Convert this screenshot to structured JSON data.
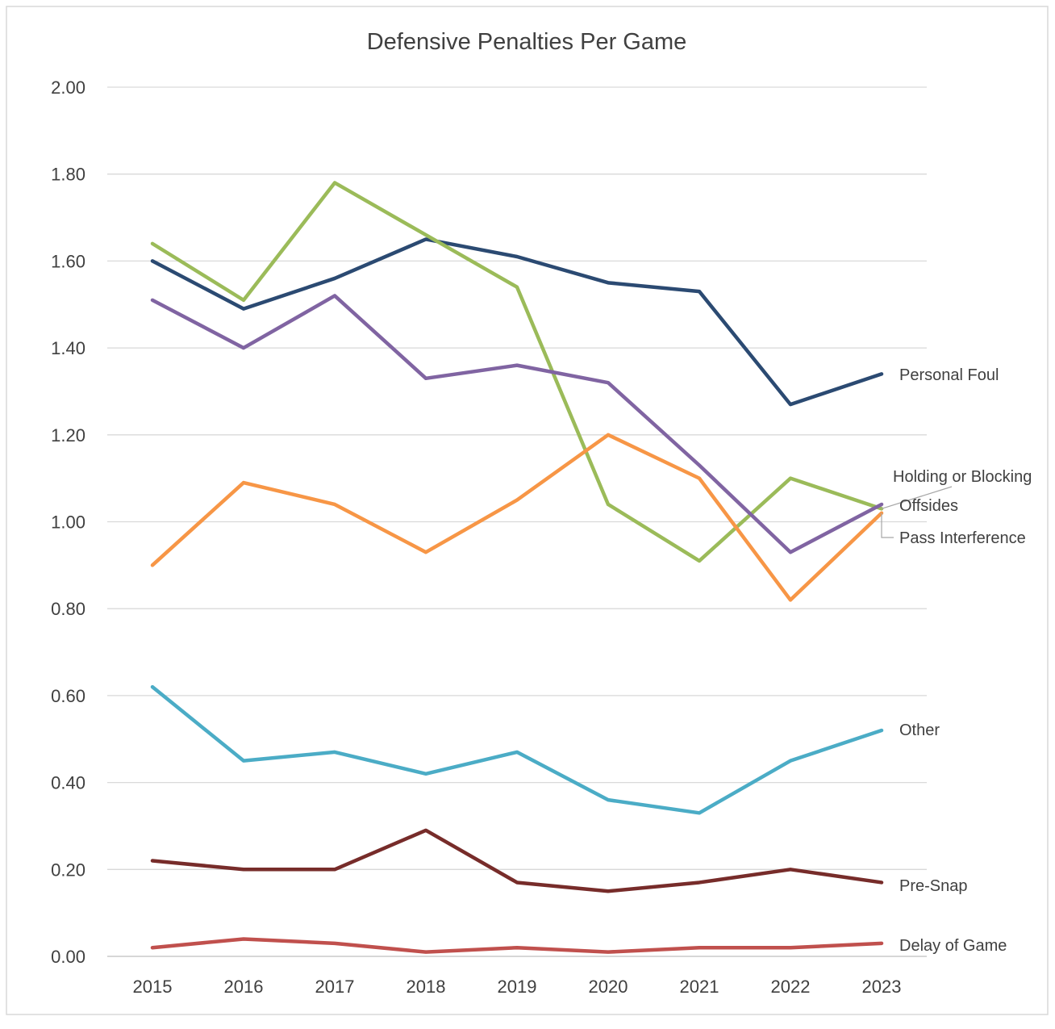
{
  "chart_data": {
    "type": "line",
    "title": "Defensive Penalties Per Game",
    "xlabel": "",
    "ylabel": "",
    "categories": [
      "2015",
      "2016",
      "2017",
      "2018",
      "2019",
      "2020",
      "2021",
      "2022",
      "2023"
    ],
    "ylim": [
      0,
      2.0
    ],
    "yticks": [
      "0.00",
      "0.20",
      "0.40",
      "0.60",
      "0.80",
      "1.00",
      "1.20",
      "1.40",
      "1.60",
      "1.80",
      "2.00"
    ],
    "grid": true,
    "legend": "inline labels at line ends (right)",
    "series": [
      {
        "name": "Personal Foul",
        "color": "#2B4A72",
        "values": [
          1.6,
          1.49,
          1.56,
          1.65,
          1.61,
          1.55,
          1.53,
          1.27,
          1.34
        ]
      },
      {
        "name": "Holding or Blocking",
        "color": "#9BBB59",
        "values": [
          1.64,
          1.51,
          1.78,
          1.66,
          1.54,
          1.04,
          0.91,
          1.1,
          1.03
        ]
      },
      {
        "name": "Offsides",
        "color": "#8064A2",
        "values": [
          1.51,
          1.4,
          1.52,
          1.33,
          1.36,
          1.32,
          1.13,
          0.93,
          1.04
        ]
      },
      {
        "name": "Pass Interference",
        "color": "#F79646",
        "values": [
          0.9,
          1.09,
          1.04,
          0.93,
          1.05,
          1.2,
          1.1,
          0.82,
          1.02
        ]
      },
      {
        "name": "Other",
        "color": "#4BACC6",
        "values": [
          0.62,
          0.45,
          0.47,
          0.42,
          0.47,
          0.36,
          0.33,
          0.45,
          0.52
        ]
      },
      {
        "name": "Pre-Snap",
        "color": "#772C2A",
        "values": [
          0.22,
          0.2,
          0.2,
          0.29,
          0.17,
          0.15,
          0.17,
          0.2,
          0.17
        ]
      },
      {
        "name": "Delay of Game",
        "color": "#C0504D",
        "values": [
          0.02,
          0.04,
          0.03,
          0.01,
          0.02,
          0.01,
          0.02,
          0.02,
          0.03
        ]
      }
    ]
  }
}
